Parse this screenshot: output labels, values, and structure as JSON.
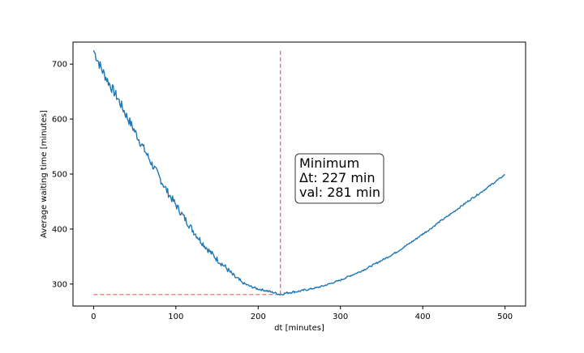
{
  "chart_data": {
    "type": "line",
    "title": "",
    "xlabel": "dt [minutes]",
    "ylabel": "Average waiting time [minutes]",
    "xlim": [
      -25,
      525
    ],
    "ylim": [
      260,
      740
    ],
    "xticks": [
      0,
      100,
      200,
      300,
      400,
      500
    ],
    "yticks": [
      300,
      400,
      500,
      600,
      700
    ],
    "grid": false,
    "series": [
      {
        "color": "#1f77b4",
        "x": [
          0,
          10,
          20,
          30,
          40,
          50,
          60,
          70,
          80,
          90,
          100,
          110,
          120,
          130,
          140,
          150,
          160,
          170,
          180,
          190,
          200,
          210,
          220,
          227,
          235,
          240,
          250,
          260,
          270,
          280,
          290,
          300,
          310,
          320,
          330,
          340,
          350,
          360,
          370,
          380,
          390,
          400,
          410,
          420,
          430,
          440,
          450,
          460,
          470,
          480,
          490,
          500
        ],
        "y": [
          725,
          690,
          662,
          636,
          606,
          578,
          549,
          521,
          494,
          467,
          444,
          421,
          399,
          379,
          361,
          345,
          331,
          315,
          303,
          296,
          291,
          288,
          284,
          281,
          284,
          285,
          287,
          290,
          293,
          297,
          302,
          307,
          314,
          320,
          327,
          335,
          343,
          351,
          360,
          370,
          380,
          391,
          401,
          413,
          423,
          434,
          445,
          456,
          466,
          477,
          488,
          499
        ]
      }
    ],
    "reference_lines": [
      {
        "orientation": "vertical",
        "x": 227,
        "y_range": [
          281,
          725
        ],
        "color": "#ff6b5e",
        "style": "dashed"
      },
      {
        "orientation": "horizontal",
        "y": 281,
        "x_range": [
          0,
          227
        ],
        "color": "#ff6b5e",
        "style": "dashed"
      }
    ],
    "annotation": {
      "lines": [
        "Minimum",
        "Δt:  227 min",
        "val: 281 min"
      ],
      "anchor": [
        250,
        500
      ]
    }
  }
}
